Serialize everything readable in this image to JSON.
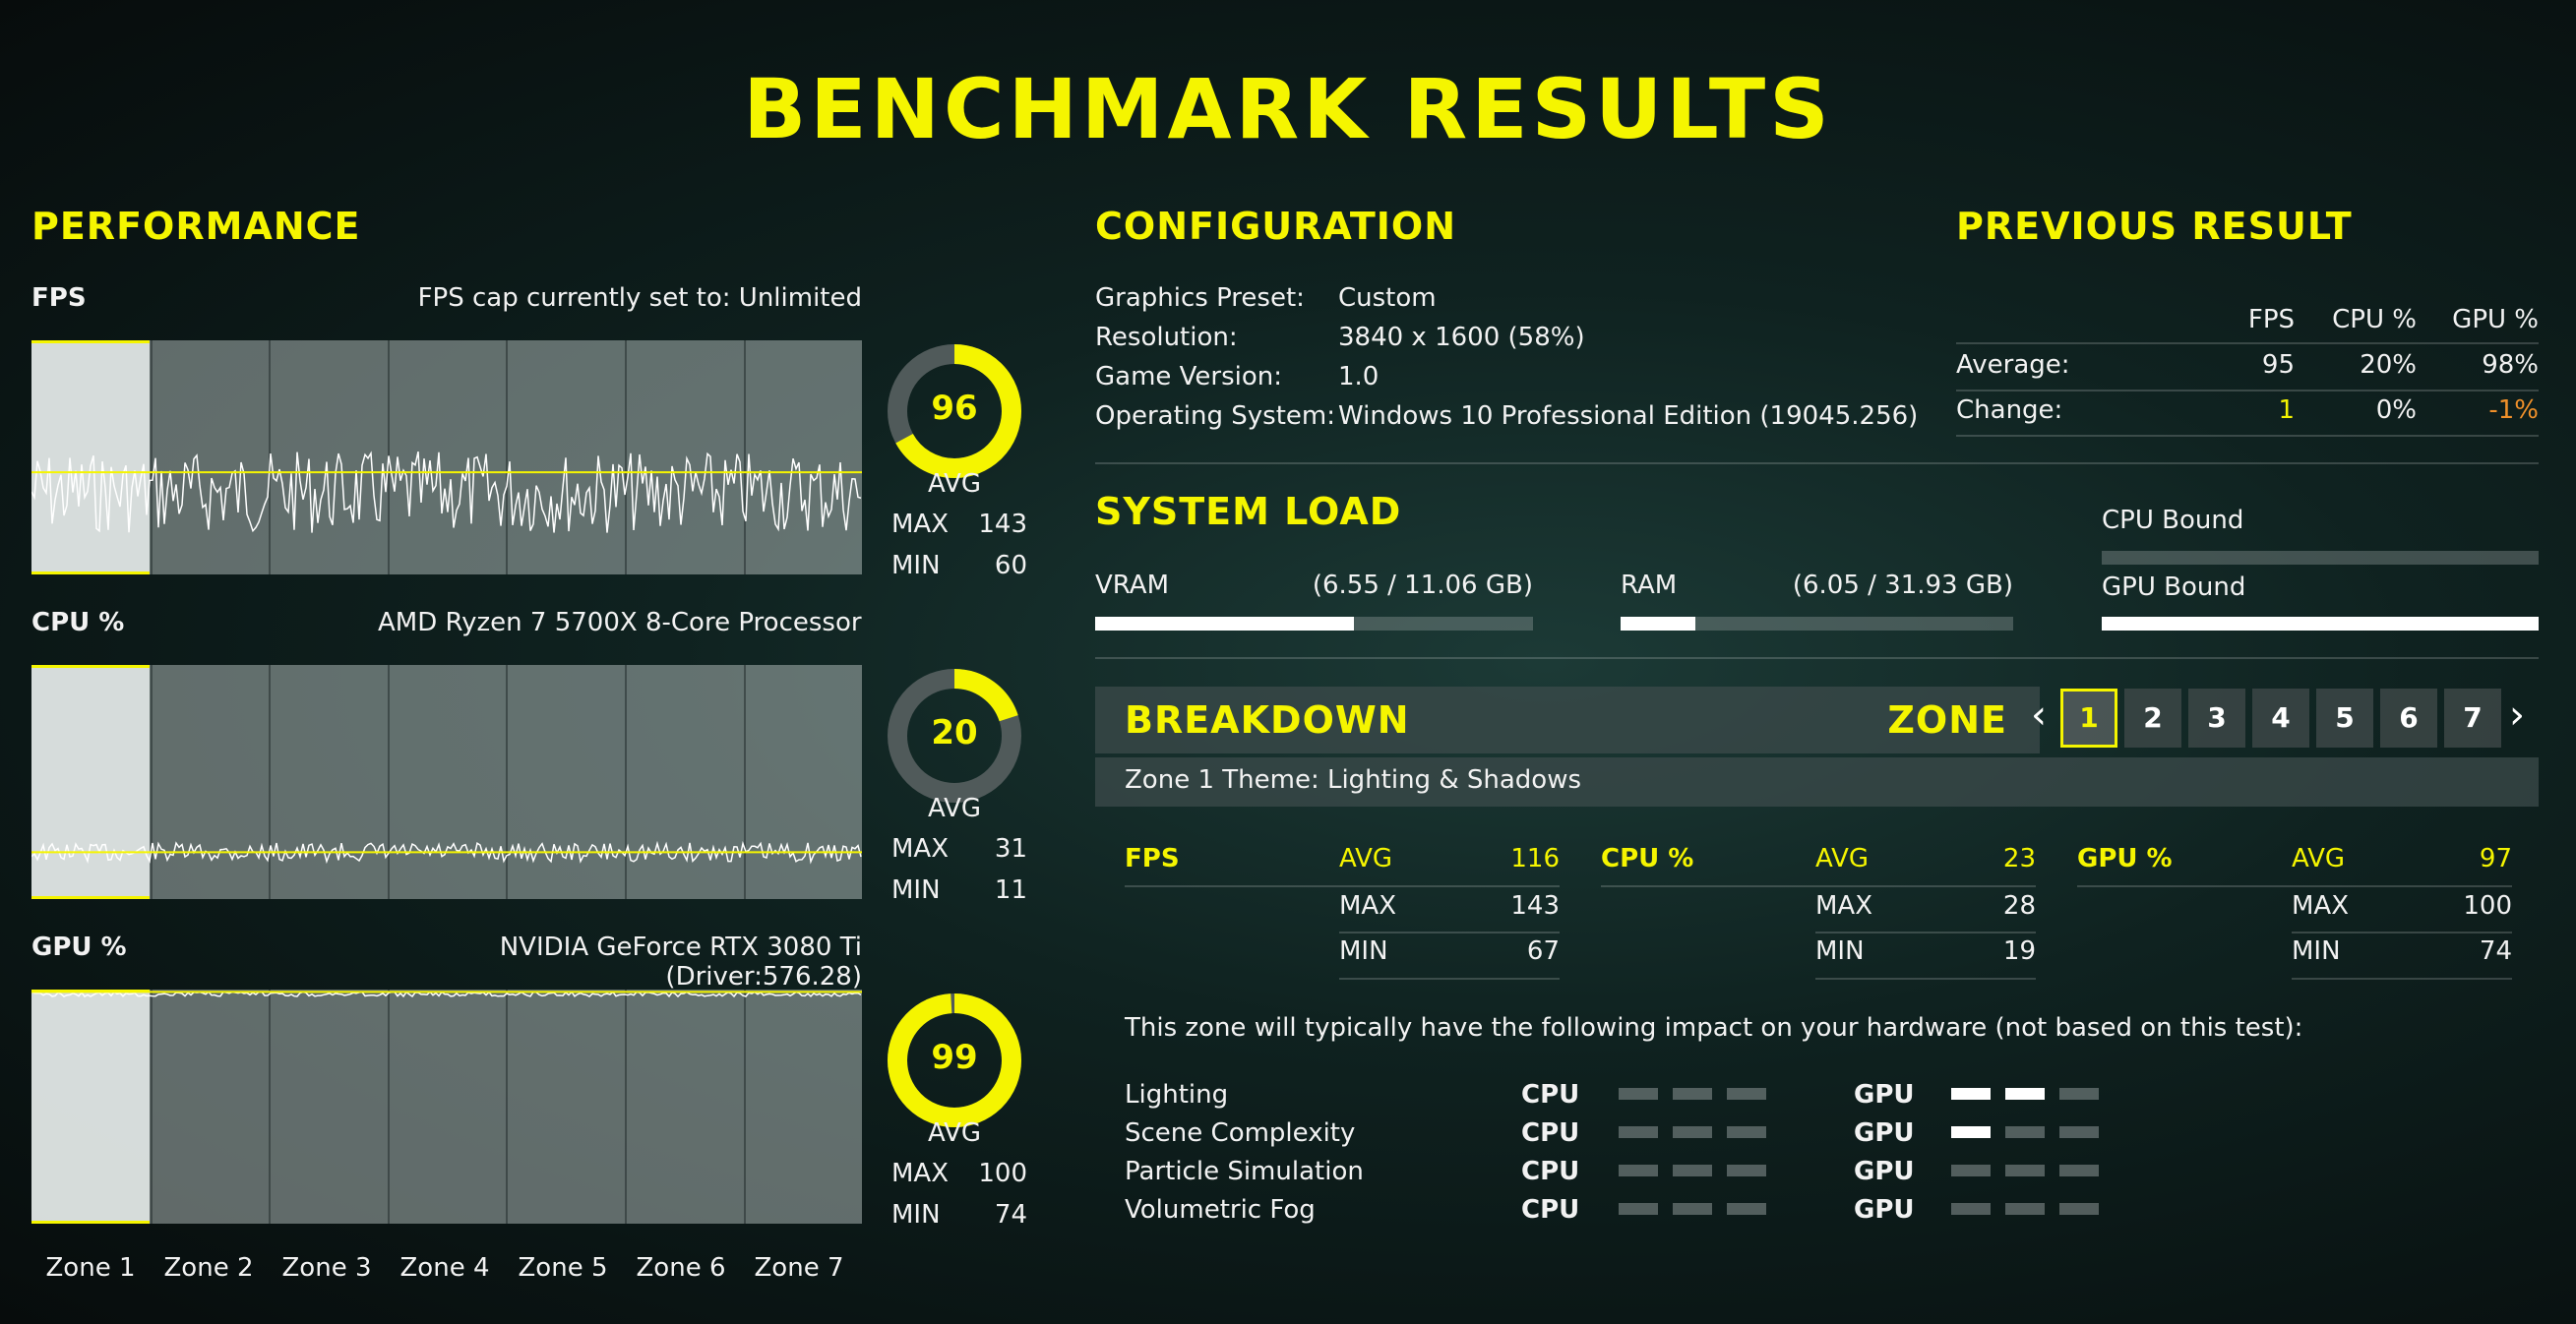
{
  "title": "BENCHMARK RESULTS",
  "performance": {
    "heading": "PERFORMANCE",
    "fps": {
      "label": "FPS",
      "info": "FPS cap currently set to: Unlimited",
      "avg": "96",
      "avg_label": "AVG",
      "max_label": "MAX",
      "max": "143",
      "min_label": "MIN",
      "min": "60",
      "gauge_fraction": 0.67
    },
    "cpu": {
      "label": "CPU %",
      "info": "AMD Ryzen 7 5700X 8-Core Processor",
      "avg": "20",
      "avg_label": "AVG",
      "max_label": "MAX",
      "max": "31",
      "min_label": "MIN",
      "min": "11",
      "gauge_fraction": 0.2
    },
    "gpu": {
      "label": "GPU %",
      "info": "NVIDIA GeForce RTX 3080 Ti (Driver:576.28)",
      "avg": "99",
      "avg_label": "AVG",
      "max_label": "MAX",
      "max": "100",
      "min_label": "MIN",
      "min": "74",
      "gauge_fraction": 0.99
    },
    "zones": [
      "Zone 1",
      "Zone 2",
      "Zone 3",
      "Zone 4",
      "Zone 5",
      "Zone 6",
      "Zone 7"
    ]
  },
  "configuration": {
    "heading": "CONFIGURATION",
    "rows": [
      {
        "key": "Graphics Preset:",
        "value": "Custom"
      },
      {
        "key": "Resolution:",
        "value": "3840 x 1600 (58%)"
      },
      {
        "key": "Game Version:",
        "value": "1.0"
      },
      {
        "key": "Operating System:",
        "value": "Windows 10 Professional Edition (19045.256)"
      }
    ]
  },
  "previous": {
    "heading": "PREVIOUS RESULT",
    "cols": [
      "FPS",
      "CPU %",
      "GPU %"
    ],
    "average_label": "Average:",
    "average": [
      "95",
      "20%",
      "98%"
    ],
    "change_label": "Change:",
    "change": [
      "1",
      "0%",
      "-1%"
    ],
    "colors": {
      "positive": "#f5f500",
      "negative": "#f0902a",
      "neutral": "#ffffff"
    }
  },
  "system_load": {
    "heading": "SYSTEM LOAD",
    "vram_label": "VRAM",
    "vram_value": "(6.55 / 11.06 GB)",
    "vram_fraction": 0.59,
    "ram_label": "RAM",
    "ram_value": "(6.05 / 31.93 GB)",
    "ram_fraction": 0.19,
    "cpu_bound_label": "CPU Bound",
    "cpu_bound_fraction": 0.0,
    "gpu_bound_label": "GPU Bound",
    "gpu_bound_fraction": 1.0
  },
  "breakdown": {
    "heading": "BREAKDOWN",
    "zone_label": "ZONE",
    "pages": [
      "1",
      "2",
      "3",
      "4",
      "5",
      "6",
      "7"
    ],
    "active_page": "1",
    "prev_icon": "‹",
    "next_icon": "›",
    "theme": "Zone 1 Theme: Lighting & Shadows",
    "stats": [
      {
        "label": "FPS",
        "avg_label": "AVG",
        "avg": "116",
        "max_label": "MAX",
        "max": "143",
        "min_label": "MIN",
        "min": "67"
      },
      {
        "label": "CPU %",
        "avg_label": "AVG",
        "avg": "23",
        "max_label": "MAX",
        "max": "28",
        "min_label": "MIN",
        "min": "19"
      },
      {
        "label": "GPU %",
        "avg_label": "AVG",
        "avg": "97",
        "max_label": "MAX",
        "max": "100",
        "min_label": "MIN",
        "min": "74"
      }
    ],
    "impact_text": "This zone will typically have the following impact on your hardware (not based on this test):",
    "impact_rows": [
      {
        "name": "Lighting",
        "cpu_label": "CPU",
        "cpu_level": 0,
        "gpu_label": "GPU",
        "gpu_level": 2
      },
      {
        "name": "Scene Complexity",
        "cpu_label": "CPU",
        "cpu_level": 0,
        "gpu_label": "GPU",
        "gpu_level": 1
      },
      {
        "name": "Particle Simulation",
        "cpu_label": "CPU",
        "cpu_level": 0,
        "gpu_label": "GPU",
        "gpu_level": 0
      },
      {
        "name": "Volumetric Fog",
        "cpu_label": "CPU",
        "cpu_level": 0,
        "gpu_label": "GPU",
        "gpu_level": 0
      }
    ]
  }
}
